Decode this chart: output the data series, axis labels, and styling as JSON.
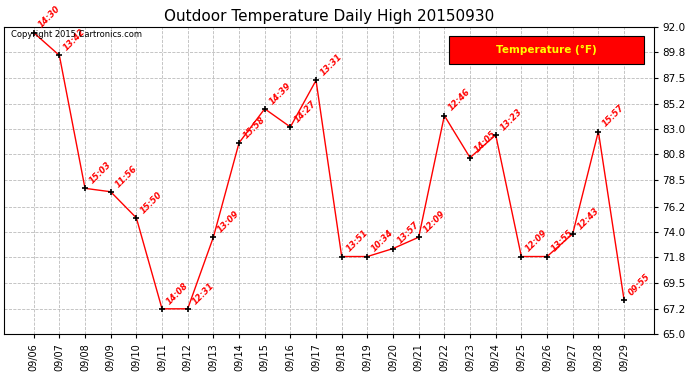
{
  "title": "Outdoor Temperature Daily High 20150930",
  "copyright": "Copyright 2015 Cartronics.com",
  "legend_label": "Temperature (°F)",
  "dates": [
    "09/06",
    "09/07",
    "09/08",
    "09/09",
    "09/10",
    "09/11",
    "09/12",
    "09/13",
    "09/14",
    "09/15",
    "09/16",
    "09/17",
    "09/18",
    "09/19",
    "09/20",
    "09/21",
    "09/22",
    "09/23",
    "09/24",
    "09/25",
    "09/26",
    "09/27",
    "09/28",
    "09/29"
  ],
  "temperatures": [
    91.5,
    89.5,
    77.8,
    77.5,
    75.2,
    67.2,
    67.2,
    73.5,
    81.8,
    84.8,
    83.2,
    87.3,
    71.8,
    71.8,
    72.5,
    73.5,
    84.2,
    80.5,
    82.5,
    71.8,
    71.8,
    73.8,
    82.8,
    68.0
  ],
  "time_labels": [
    "14:30",
    "13:42",
    "15:03",
    "11:56",
    "15:50",
    "14:08",
    "12:31",
    "13:09",
    "15:58",
    "14:39",
    "14:27",
    "13:31",
    "13:51",
    "10:34",
    "13:57",
    "12:09",
    "12:46",
    "14:05",
    "13:23",
    "12:09",
    "13:55",
    "12:43",
    "15:57",
    "09:55"
  ],
  "ylim": [
    65.0,
    92.0
  ],
  "yticks": [
    65.0,
    67.2,
    69.5,
    71.8,
    74.0,
    76.2,
    78.5,
    80.8,
    83.0,
    85.2,
    87.5,
    89.8,
    92.0
  ],
  "line_color": "red",
  "marker_color": "black",
  "label_color": "red",
  "bg_color": "white",
  "grid_color": "#cccccc",
  "title_color": "black",
  "legend_bg": "red",
  "legend_text_color": "yellow"
}
